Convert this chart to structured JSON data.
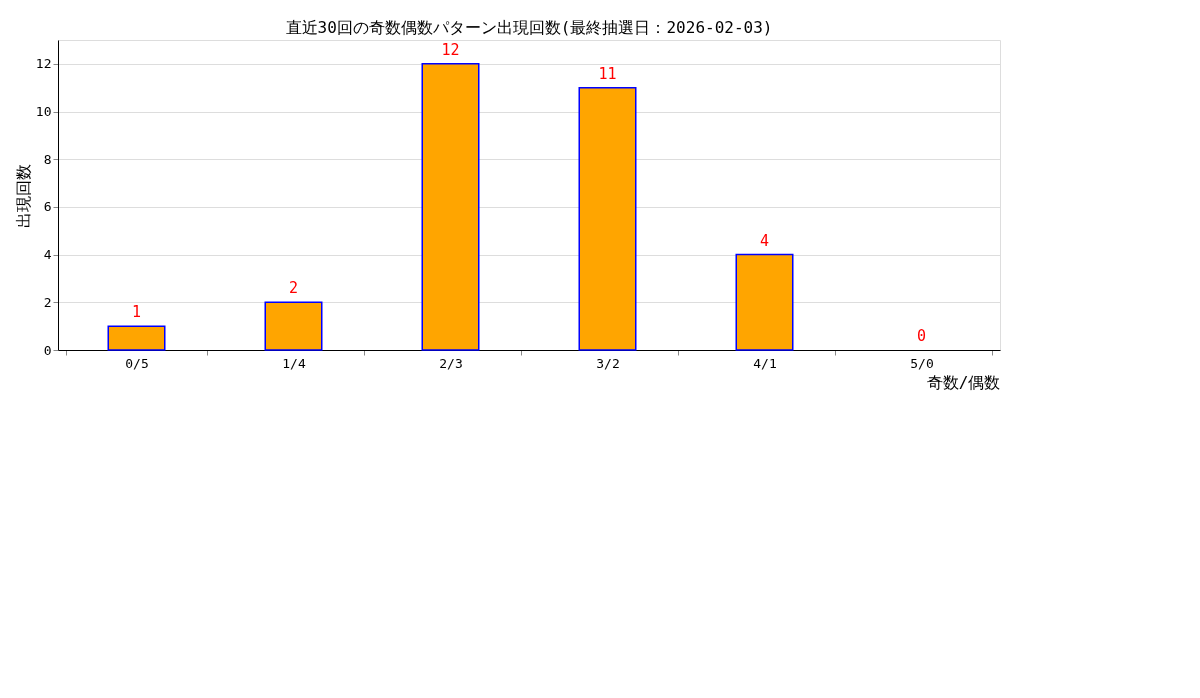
{
  "chart_data": {
    "type": "bar",
    "title": "直近30回の奇数偶数パターン出現回数(最終抽選日：2026-02-03)",
    "xlabel": "奇数/偶数",
    "ylabel": "出現回数",
    "categories": [
      "0/5",
      "1/4",
      "2/3",
      "3/2",
      "4/1",
      "5/0"
    ],
    "values": [
      1,
      2,
      12,
      11,
      4,
      0
    ],
    "color": "#ffa500",
    "ylim": [
      0,
      13
    ],
    "yticks": [
      0,
      2,
      4,
      6,
      8,
      10,
      12
    ],
    "grid": "y",
    "data_labels": true
  }
}
